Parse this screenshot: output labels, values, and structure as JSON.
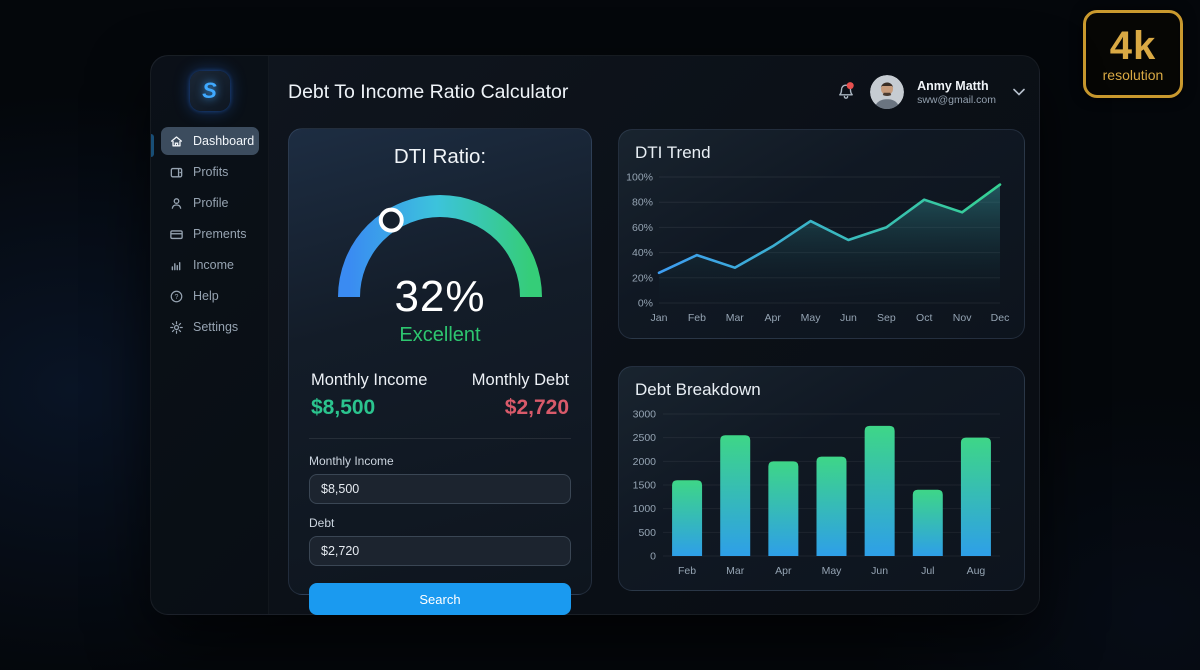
{
  "badge": {
    "title": "4k",
    "subtitle": "resolution",
    "color": "#d9a944"
  },
  "sidebar": {
    "logo_letter": "S",
    "items": [
      {
        "label": "Dashboard",
        "icon": "home",
        "active": true
      },
      {
        "label": "Profits",
        "icon": "wallet",
        "active": false
      },
      {
        "label": "Profile",
        "icon": "user",
        "active": false
      },
      {
        "label": "Prements",
        "icon": "card",
        "active": false
      },
      {
        "label": "Income",
        "icon": "bars",
        "active": false
      },
      {
        "label": "Help",
        "icon": "help",
        "active": false
      },
      {
        "label": "Settings",
        "icon": "gear",
        "active": false
      }
    ]
  },
  "header": {
    "title": "Debt To Income Ratio Calculator",
    "notifications": {
      "has_unread": true
    },
    "user": {
      "name": "Anmy Matth",
      "email": "sww@gmail.com"
    }
  },
  "calculator": {
    "title": "DTI Ratio:",
    "value": 32,
    "value_label": "32%",
    "status": "Excellent",
    "status_color": "#2dc66f",
    "summary": {
      "income_label": "Monthly Income",
      "income_value": "$8,500",
      "income_color": "#2bc48e",
      "debt_label": "Monthly Debt",
      "debt_value": "$2,720",
      "debt_color": "#d95a6a"
    },
    "form": {
      "income_label": "Monthly Income",
      "income_value": "$8,500",
      "debt_label": "Debt",
      "debt_value": "$2,720",
      "submit_label": "Search"
    },
    "gauge_colors": {
      "start": "#3a8bf2",
      "mid": "#3cc3dc",
      "end": "#35cd78"
    }
  },
  "chart_data": [
    {
      "type": "area",
      "title": "DTI Trend",
      "x": [
        "Jan",
        "Feb",
        "Mar",
        "Apr",
        "May",
        "Jun",
        "Sep",
        "Oct",
        "Nov",
        "Dec"
      ],
      "values": [
        24,
        38,
        28,
        45,
        65,
        50,
        60,
        82,
        72,
        94
      ],
      "yticks": [
        0,
        20,
        40,
        60,
        80,
        100
      ],
      "ytick_suffix": "%",
      "ylim": [
        0,
        100
      ],
      "grid": true,
      "legend": "none",
      "line_colors": {
        "start": "#3e9df2",
        "end": "#36d292"
      },
      "fill_colors": {
        "top": "rgba(58,165,170,0.45)",
        "bottom": "rgba(14,35,45,0.03)"
      }
    },
    {
      "type": "bar",
      "title": "Debt Breakdown",
      "categories": [
        "Feb",
        "Mar",
        "Apr",
        "May",
        "Jun",
        "Jul",
        "Aug"
      ],
      "values": [
        1600,
        2550,
        2000,
        2100,
        2750,
        1400,
        2500
      ],
      "yticks": [
        0,
        500,
        1000,
        1500,
        2000,
        2500,
        3000
      ],
      "ytick_suffix": "",
      "ylim": [
        0,
        3000
      ],
      "grid": true,
      "legend": "none",
      "bar_colors": {
        "top": "#3ed687",
        "bottom": "#2e9fe8"
      }
    }
  ]
}
